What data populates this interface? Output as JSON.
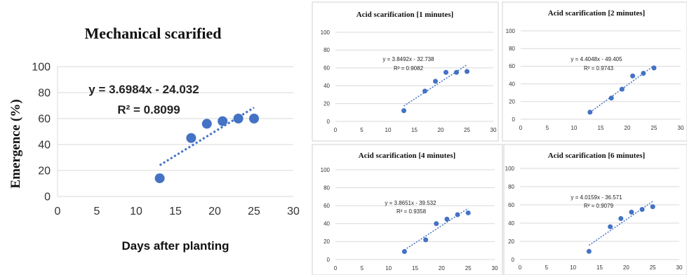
{
  "figure": {
    "ylabel": "Emergence (%)",
    "colors": {
      "marker": "#4472c4",
      "trend": "#4472c4",
      "grid": "#d9d9d9",
      "panel_border": "#d0d0d0",
      "text": "#222222"
    }
  },
  "chart_data": [
    {
      "type": "scatter",
      "title": "Mechanical scarified",
      "xlabel": "Days after planting",
      "ylabel": "",
      "xlim": [
        0,
        30
      ],
      "ylim": [
        0,
        100
      ],
      "xticks": [
        "0",
        "5",
        "10",
        "15",
        "20",
        "25",
        "30"
      ],
      "yticks": [
        "0",
        "20",
        "40",
        "60",
        "80",
        "100"
      ],
      "x": [
        13,
        17,
        19,
        21,
        23,
        25
      ],
      "y": [
        14,
        45,
        56,
        58,
        60,
        60
      ],
      "trendline": {
        "slope": 3.6984,
        "intercept": -24.032,
        "equation": "y = 3.6984x - 24.032",
        "r2": "R² = 0.8099"
      },
      "grid": "horizontal"
    },
    {
      "type": "scatter",
      "title": "Acid scarification [1 minutes]",
      "xlim": [
        0,
        30
      ],
      "ylim": [
        0,
        100
      ],
      "xticks": [
        "0",
        "5",
        "10",
        "15",
        "20",
        "25",
        "30"
      ],
      "yticks": [
        "0",
        "20",
        "40",
        "60",
        "80",
        "100"
      ],
      "x": [
        13,
        17,
        19,
        21,
        23,
        25
      ],
      "y": [
        12,
        34,
        45,
        55,
        55,
        56
      ],
      "trendline": {
        "slope": 3.8492,
        "intercept": -32.738,
        "equation": "y = 3.8492x - 32.738",
        "r2": "R² = 0.9082"
      },
      "grid": "horizontal"
    },
    {
      "type": "scatter",
      "title": "Acid scarification [2 minutes]",
      "xlim": [
        0,
        30
      ],
      "ylim": [
        0,
        100
      ],
      "xticks": [
        "0",
        "5",
        "10",
        "15",
        "20",
        "25",
        "30"
      ],
      "yticks": [
        "0",
        "20",
        "40",
        "60",
        "80",
        "100"
      ],
      "x": [
        13,
        17,
        19,
        21,
        23,
        25
      ],
      "y": [
        8,
        24,
        34,
        49,
        52,
        58
      ],
      "trendline": {
        "slope": 4.4048,
        "intercept": -49.405,
        "equation": "y = 4.4048x - 49.405",
        "r2": "R² = 0.9743"
      },
      "grid": "horizontal"
    },
    {
      "type": "scatter",
      "title": "Acid scarification [4 minutes]",
      "xlim": [
        0,
        30
      ],
      "ylim": [
        0,
        100
      ],
      "xticks": [
        "0",
        "5",
        "10",
        "15",
        "20",
        "25",
        "30"
      ],
      "yticks": [
        "0",
        "20",
        "40",
        "60",
        "80",
        "100"
      ],
      "x": [
        13,
        17,
        19,
        21,
        23,
        25
      ],
      "y": [
        9,
        22,
        40,
        45,
        50,
        52
      ],
      "trendline": {
        "slope": 3.8651,
        "intercept": -39.532,
        "equation": "y = 3.8651x - 39.532",
        "r2": "R² = 0.9358"
      },
      "grid": "horizontal"
    },
    {
      "type": "scatter",
      "title": "Acid scarification [6 minutes]",
      "xlim": [
        0,
        30
      ],
      "ylim": [
        0,
        100
      ],
      "xticks": [
        "0",
        "5",
        "10",
        "15",
        "20",
        "25",
        "30"
      ],
      "yticks": [
        "0",
        "20",
        "40",
        "60",
        "80",
        "100"
      ],
      "x": [
        13,
        17,
        19,
        21,
        23,
        25
      ],
      "y": [
        9,
        36,
        45,
        52,
        55,
        58
      ],
      "trendline": {
        "slope": 4.0159,
        "intercept": -36.571,
        "equation": "y = 4.0159x - 36.571",
        "r2": "R² = 0.9079"
      },
      "grid": "horizontal"
    }
  ]
}
